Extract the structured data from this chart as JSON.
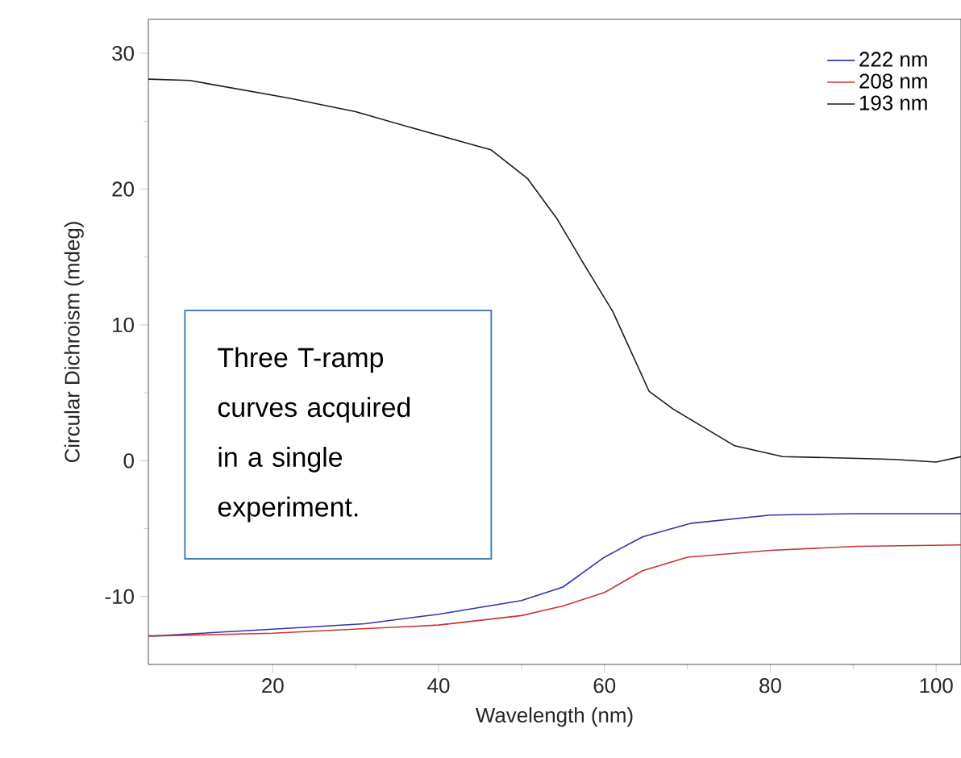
{
  "chart_data": {
    "type": "line",
    "xlabel": "Wavelength (nm)",
    "ylabel": "Circular Dichroism (mdeg)",
    "xlim": [
      5,
      103
    ],
    "ylim": [
      -15,
      32.5
    ],
    "xticks": [
      20,
      40,
      60,
      80,
      100
    ],
    "yticks": [
      -10,
      0,
      10,
      20,
      30
    ],
    "legend": "top right",
    "grid": false,
    "marker": "none",
    "line_style": "solid",
    "annotations": [
      "Three T-ramp curves acquired in a single experiment."
    ],
    "series": [
      {
        "name": "222 nm",
        "color": "#3333aa",
        "x": [
          5,
          5.8,
          20,
          31.1,
          40,
          50,
          55,
          60,
          64.6,
          70.5,
          80,
          90.5,
          103
        ],
        "values": [
          -12.9,
          -12.9,
          -12.4,
          -12.0,
          -11.3,
          -10.3,
          -9.3,
          -7.1,
          -5.6,
          -4.6,
          -4.0,
          -3.9,
          -3.9
        ]
      },
      {
        "name": "208 nm",
        "color": "#cc3333",
        "x": [
          5,
          5.8,
          20,
          40,
          50,
          55,
          60,
          64.6,
          70,
          80,
          90.5,
          103
        ],
        "values": [
          -12.9,
          -12.9,
          -12.7,
          -12.1,
          -11.4,
          -10.7,
          -9.7,
          -8.1,
          -7.1,
          -6.6,
          -6.3,
          -6.2
        ]
      },
      {
        "name": "193 nm",
        "color": "#1a1a1a",
        "x": [
          5,
          10,
          22,
          30,
          38,
          46.3,
          50.7,
          54.3,
          57.5,
          61,
          65.4,
          68.3,
          75.7,
          81.5,
          88.8,
          95,
          100,
          103
        ],
        "values": [
          28.1,
          28.0,
          26.7,
          25.7,
          24.3,
          22.9,
          20.8,
          17.8,
          14.5,
          11.0,
          5.1,
          3.8,
          1.1,
          0.3,
          0.2,
          0.1,
          -0.1,
          0.3
        ]
      }
    ]
  }
}
